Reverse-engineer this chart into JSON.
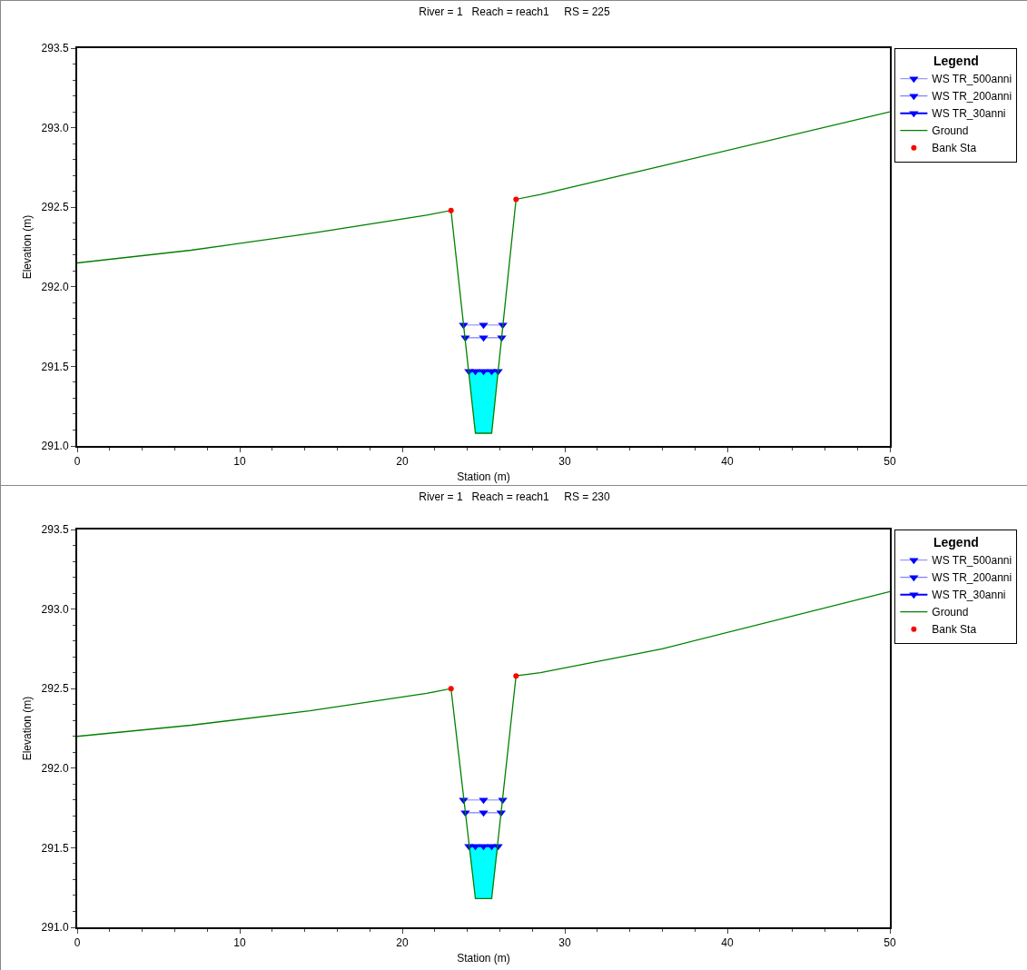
{
  "chart_data": [
    {
      "type": "line",
      "title": "River = 1   Reach = reach1     RS = 225",
      "xlabel": "Station (m)",
      "ylabel": "Elevation (m)",
      "legend_title": "Legend",
      "legend": "right",
      "grid": false,
      "xlim": [
        0,
        50
      ],
      "xticks": [
        0,
        10,
        20,
        30,
        40,
        50
      ],
      "ylim": [
        291,
        293.5
      ],
      "yticks": [
        {
          "value": 291,
          "label": "291.0"
        },
        291.5,
        {
          "value": 292,
          "label": "292.0"
        },
        292.5,
        {
          "value": 293,
          "label": "293.0"
        },
        293.5
      ],
      "series": [
        {
          "name": "WS TR_500anni",
          "type": "line",
          "color": "#8080ff",
          "marker": "triangle",
          "x": [
            23.77,
            25,
            26.18
          ],
          "values": [
            291.76,
            291.76,
            291.76
          ]
        },
        {
          "name": "WS TR_200anni",
          "type": "line",
          "color": "#6060ff",
          "marker": "triangle",
          "x": [
            23.88,
            25,
            26.12
          ],
          "values": [
            291.68,
            291.68,
            291.68
          ]
        },
        {
          "name": "WS TR_30anni",
          "type": "line",
          "color": "#0000ff",
          "marker": "triangle",
          "x": [
            24.1,
            24.5,
            25,
            25.5,
            25.9
          ],
          "values": [
            291.47,
            291.47,
            291.47,
            291.47,
            291.47
          ],
          "lower": [
            291.47,
            291.08,
            291.08,
            291.08,
            291.47
          ],
          "upper": [
            291.47,
            291.47,
            291.47,
            291.47,
            291.47
          ]
        },
        {
          "name": "Ground",
          "type": "line",
          "color": "#008000",
          "marker": "none",
          "x": [
            0,
            7,
            14,
            21.5,
            23,
            24.5,
            25.5,
            27,
            28.5,
            36,
            50
          ],
          "values": [
            292.15,
            292.23,
            292.33,
            292.45,
            292.48,
            291.08,
            291.08,
            292.55,
            292.58,
            292.76,
            293.1
          ]
        },
        {
          "name": "Bank Sta",
          "type": "scatter",
          "color": "#ff0000",
          "marker": "circle",
          "x": [
            23,
            27
          ],
          "values": [
            292.48,
            292.55
          ]
        }
      ]
    },
    {
      "type": "line",
      "title": "River = 1   Reach = reach1     RS = 230",
      "xlabel": "Station (m)",
      "ylabel": "Elevation (m)",
      "legend_title": "Legend",
      "legend": "right",
      "grid": false,
      "xlim": [
        0,
        50
      ],
      "xticks": [
        0,
        10,
        20,
        30,
        40,
        50
      ],
      "ylim": [
        291,
        293.5
      ],
      "yticks": [
        {
          "value": 291,
          "label": "291.0"
        },
        291.5,
        {
          "value": 292,
          "label": "292.0"
        },
        292.5,
        {
          "value": 293,
          "label": "293.0"
        },
        293.5
      ],
      "series": [
        {
          "name": "WS TR_500anni",
          "type": "line",
          "color": "#8080ff",
          "marker": "triangle",
          "x": [
            23.77,
            25,
            26.18
          ],
          "values": [
            291.8,
            291.8,
            291.8
          ]
        },
        {
          "name": "WS TR_200anni",
          "type": "line",
          "color": "#6060ff",
          "marker": "triangle",
          "x": [
            23.88,
            25,
            26.08
          ],
          "values": [
            291.72,
            291.72,
            291.72
          ]
        },
        {
          "name": "WS TR_30anni",
          "type": "line",
          "color": "#0000ff",
          "marker": "triangle",
          "x": [
            24.1,
            24.5,
            25,
            25.5,
            25.9
          ],
          "values": [
            291.51,
            291.51,
            291.51,
            291.51,
            291.51
          ],
          "lower": [
            291.51,
            291.18,
            291.18,
            291.18,
            291.51
          ],
          "upper": [
            291.51,
            291.51,
            291.51,
            291.51,
            291.51
          ]
        },
        {
          "name": "Ground",
          "type": "line",
          "color": "#008000",
          "marker": "none",
          "x": [
            0,
            7,
            14.3,
            21.5,
            23,
            24.5,
            25.5,
            27,
            28.5,
            36,
            50
          ],
          "values": [
            292.2,
            292.27,
            292.36,
            292.47,
            292.5,
            291.18,
            291.18,
            292.58,
            292.6,
            292.75,
            293.11
          ]
        },
        {
          "name": "Bank Sta",
          "type": "scatter",
          "color": "#ff0000",
          "marker": "circle",
          "x": [
            23,
            27
          ],
          "values": [
            292.5,
            292.58
          ]
        }
      ]
    }
  ]
}
